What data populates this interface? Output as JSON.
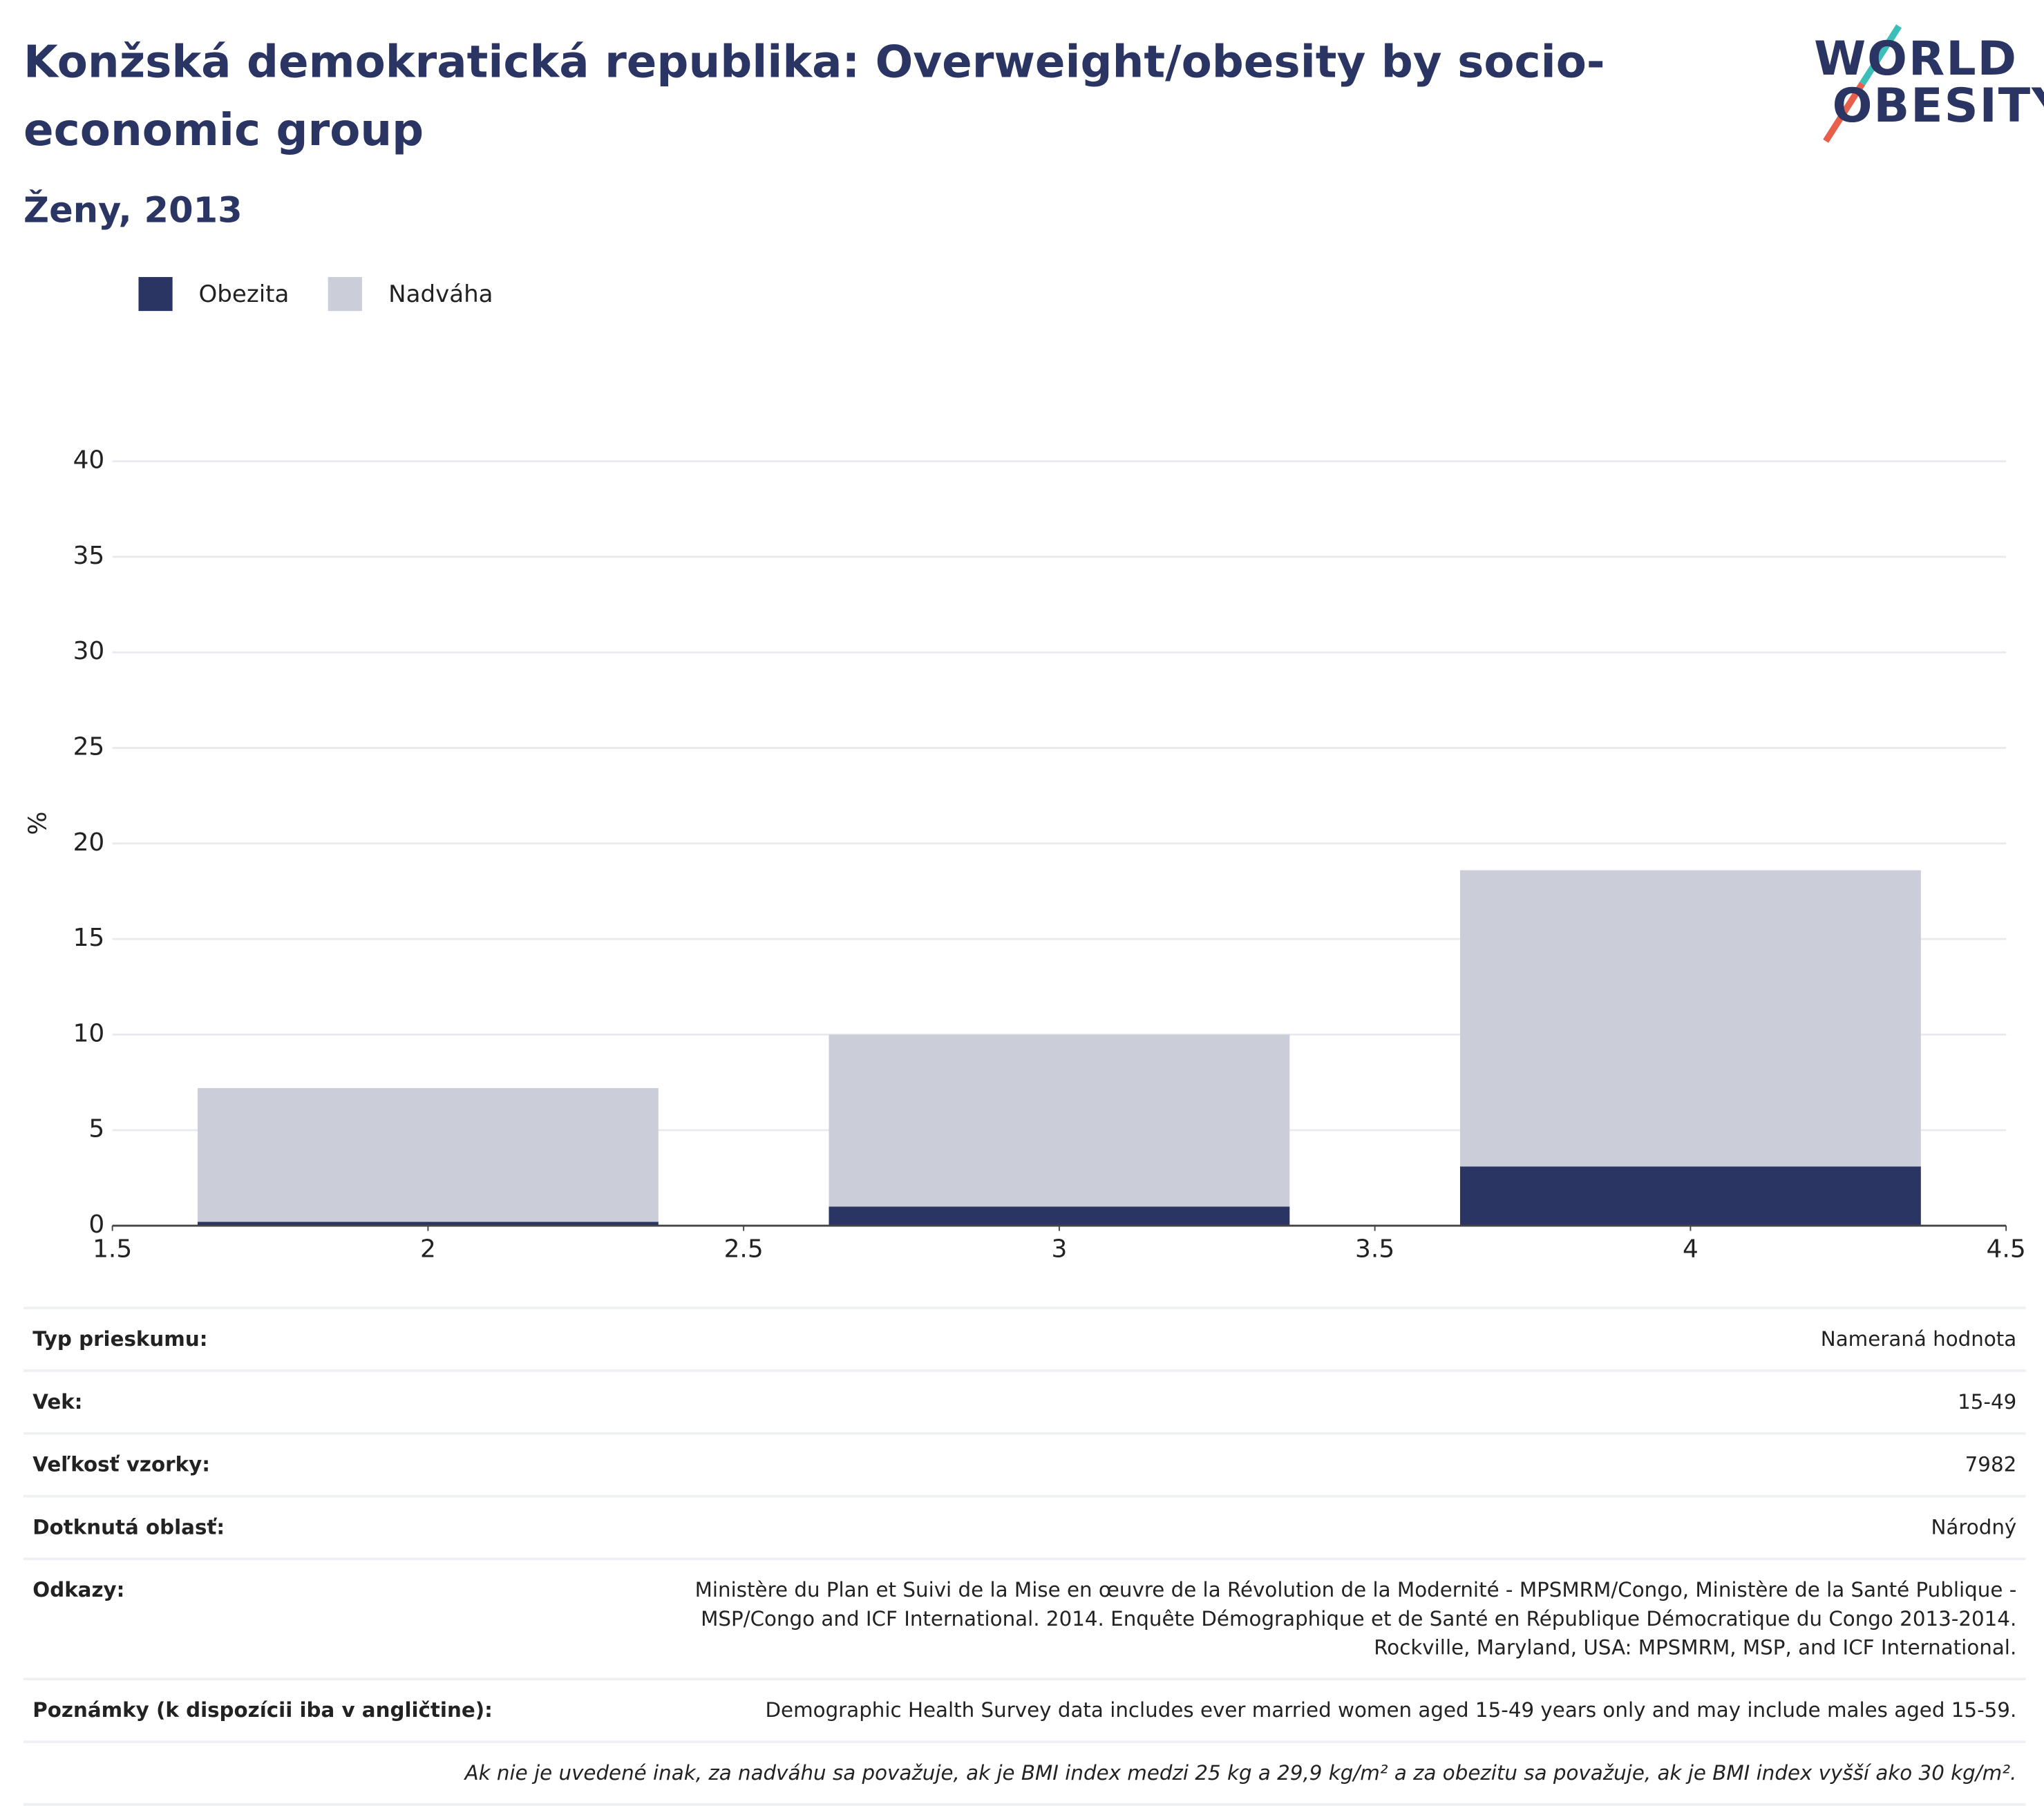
{
  "header": {
    "title": "Konžská demokratická republika: Overweight/obesity by socio-economic group",
    "subtitle": "Ženy, 2013",
    "logo": [
      "WORLD",
      "OBESITY"
    ]
  },
  "chart_data": {
    "type": "bar",
    "stacked": true,
    "x": [
      2,
      3,
      4
    ],
    "series": [
      {
        "name": "Obezita",
        "color": "#2a3563",
        "values": [
          0.2,
          1.0,
          3.1
        ]
      },
      {
        "name": "Nadváha",
        "color": "#cbcdd8",
        "values": [
          7.0,
          9.0,
          15.5
        ]
      }
    ],
    "ylabel": "%",
    "xlim": [
      1.5,
      4.5
    ],
    "xticks": [
      1.5,
      2,
      2.5,
      3,
      3.5,
      4,
      4.5
    ],
    "ylim": [
      0,
      40
    ],
    "yticks": [
      0,
      5,
      10,
      15,
      20,
      25,
      30,
      35,
      40
    ],
    "grid": true
  },
  "table": {
    "rows": [
      [
        "Typ prieskumu:",
        "Nameraná hodnota"
      ],
      [
        "Vek:",
        "15-49"
      ],
      [
        "Veľkosť vzorky:",
        "7982"
      ],
      [
        "Dotknutá oblasť:",
        "Národný"
      ],
      [
        "Odkazy:",
        [
          "Ministère du Plan et Suivi de la Mise en œuvre de la Révolution de la Modernité - MPSMRM/Congo, Ministère de la Santé Publique -",
          "MSP/Congo and ICF International. 2014. Enquête Démographique et de Santé en République Démocratique du Congo 2013-2014.",
          "Rockville, Maryland, USA: MPSMRM, MSP, and ICF International."
        ]
      ],
      [
        "Poznámky (k dispozícii iba v angličtine):",
        "Demographic Health Survey data includes ever married women aged 15-49 years only and may include males aged 15-59."
      ]
    ],
    "footnote": "Ak nie je uvedené inak, za nadváhu sa považuje, ak je BMI index medzi 25 kg a 29,9 kg/m² a za obezitu sa považuje, ak je BMI index vyšší ako 30 kg/m²."
  }
}
